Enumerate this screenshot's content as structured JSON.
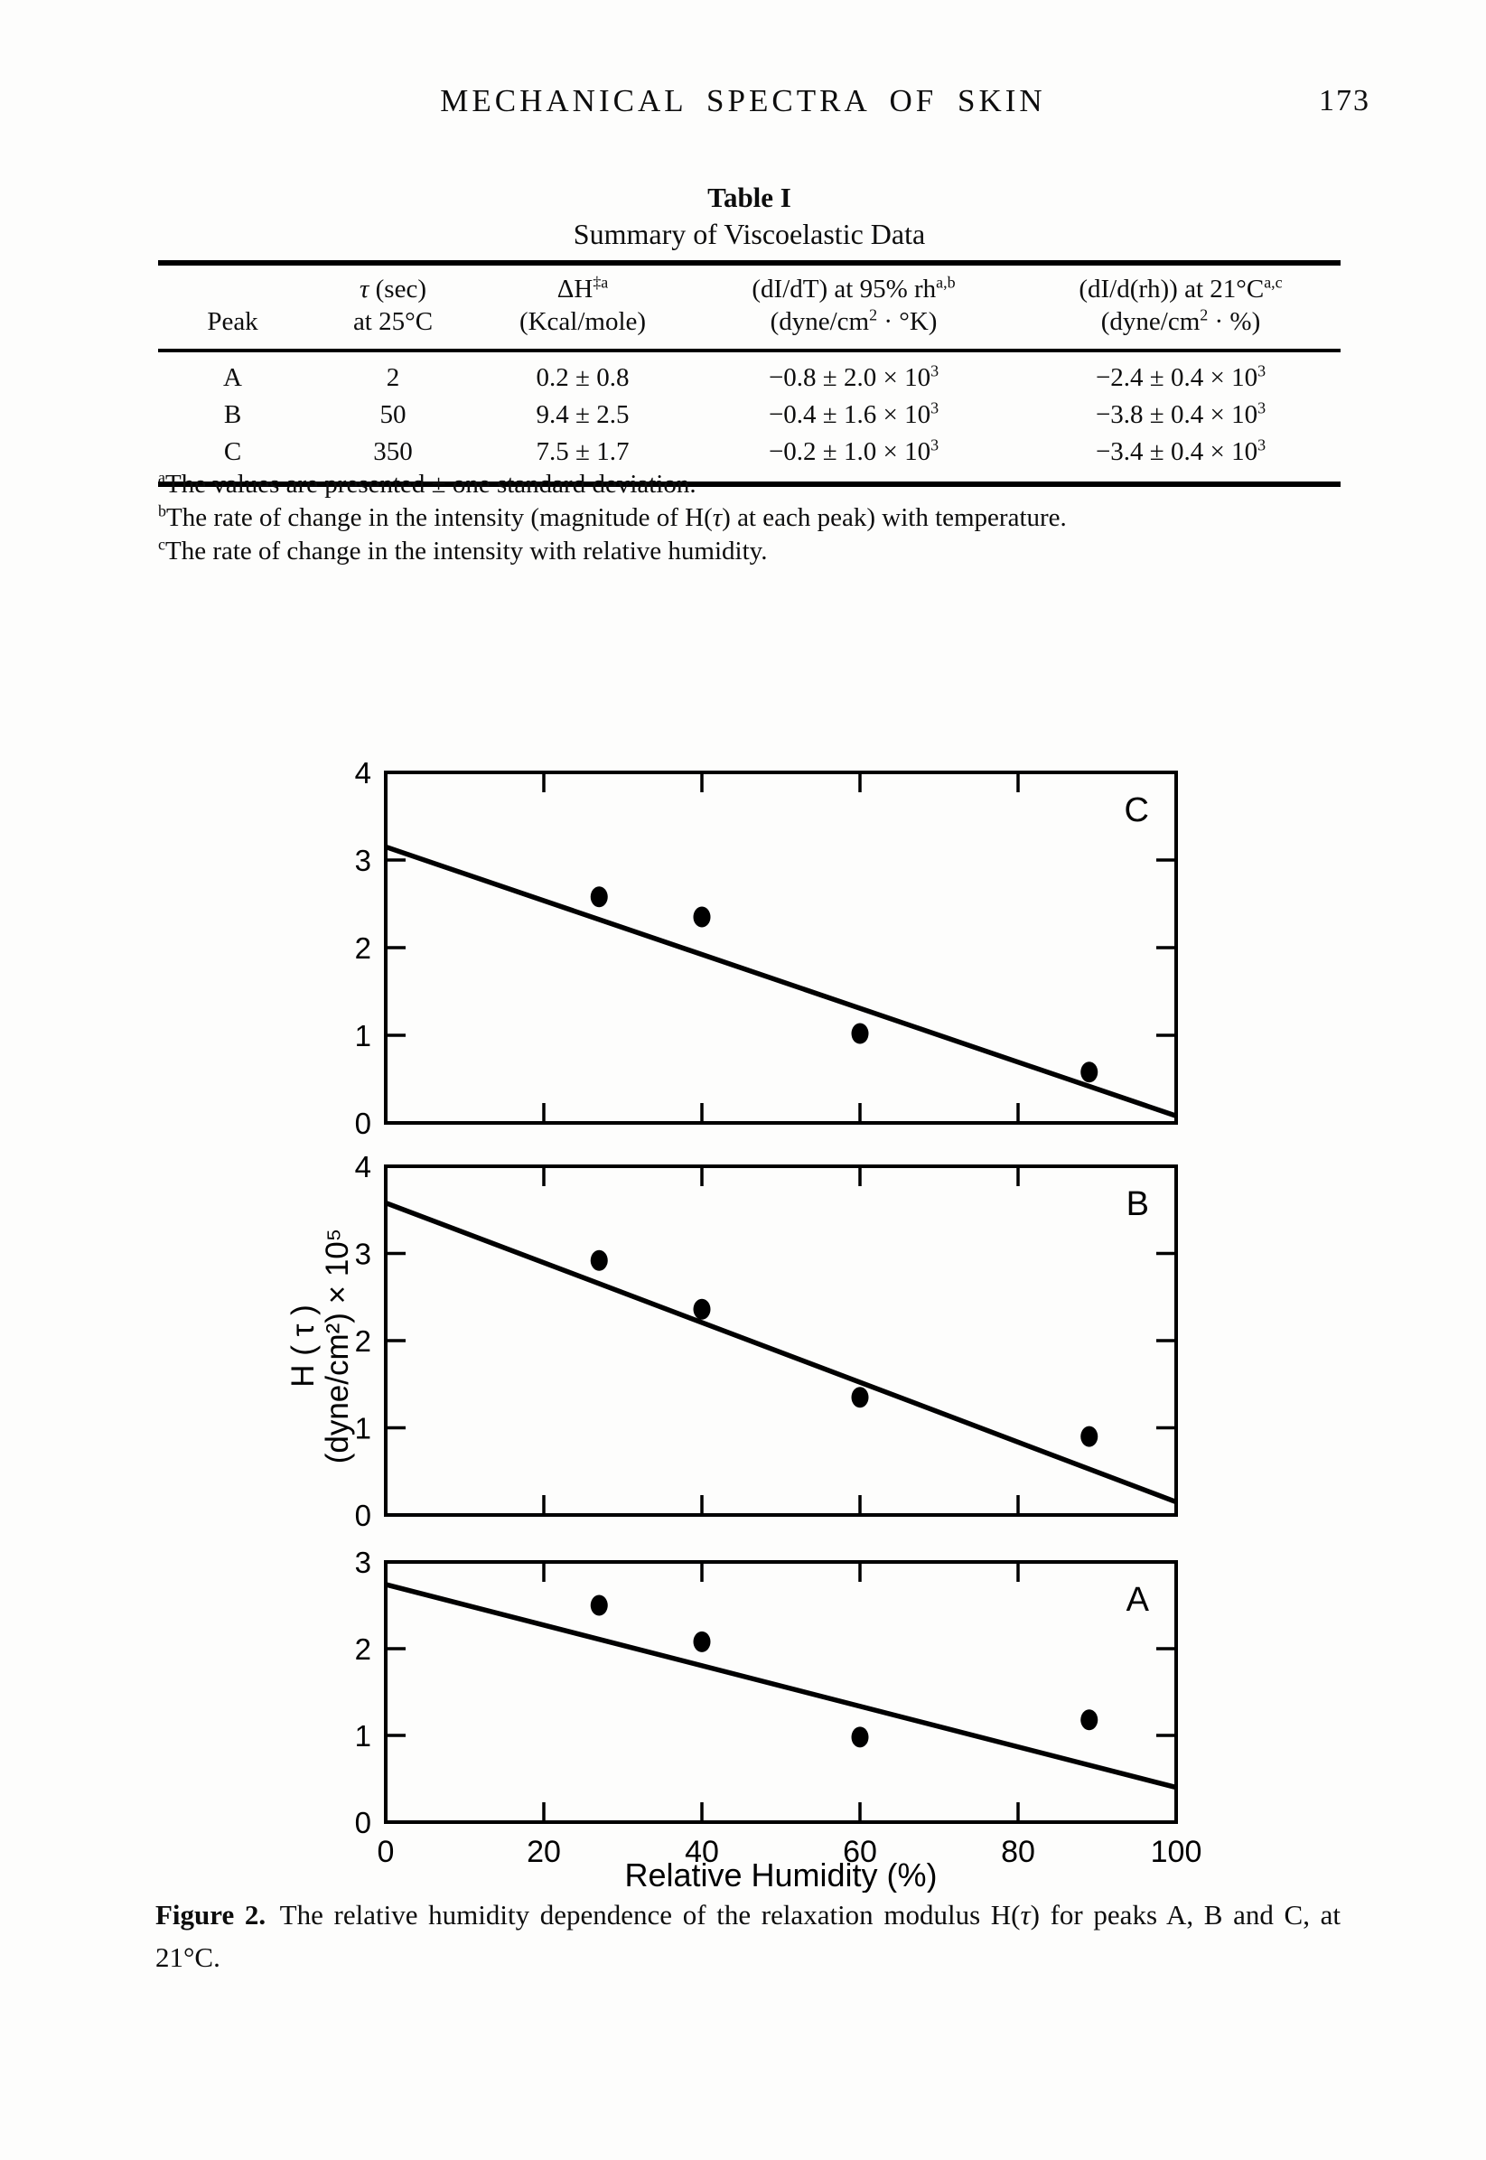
{
  "page": {
    "header_title": "MECHANICAL SPECTRA OF SKIN",
    "page_number": "173"
  },
  "table": {
    "title": "Table I",
    "subtitle": "Summary of Viscoelastic Data",
    "columns": [
      {
        "line1_html": "",
        "line2_html": "Peak"
      },
      {
        "line1_html": "<i>τ</i> (sec)",
        "line2_html": "at 25°C"
      },
      {
        "line1_html": "ΔH<sup>‡a</sup>",
        "line2_html": "(Kcal/mole)"
      },
      {
        "line1_html": "(dI/dT) at 95% rh<sup>a,b</sup>",
        "line2_html": "(dyne/cm<sup>2</sup> · °K)"
      },
      {
        "line1_html": "(dI/d(rh)) at 21°C<sup>a,c</sup>",
        "line2_html": "(dyne/cm<sup>2</sup> · %)"
      }
    ],
    "rows": [
      {
        "peak": "A",
        "tau": "2",
        "dh": "0.2 ± 0.8",
        "didt_html": "−0.8 ± 2.0 × 10<sup>3</sup>",
        "didrh_html": "−2.4 ± 0.4 × 10<sup>3</sup>"
      },
      {
        "peak": "B",
        "tau": "50",
        "dh": "9.4 ± 2.5",
        "didt_html": "−0.4 ± 1.6 × 10<sup>3</sup>",
        "didrh_html": "−3.8 ± 0.4 × 10<sup>3</sup>"
      },
      {
        "peak": "C",
        "tau": "350",
        "dh": "7.5 ± 1.7",
        "didt_html": "−0.2 ± 1.0 × 10<sup>3</sup>",
        "didrh_html": "−3.4 ± 0.4 × 10<sup>3</sup>"
      }
    ],
    "footnotes_html": [
      "<sup>a</sup>The values are presented ± one standard deviation.",
      "<sup>b</sup>The rate of change in the intensity (magnitude of H(<i>τ</i>) at each peak) with temperature.",
      "<sup>c</sup>The rate of change in the intensity with relative humidity."
    ]
  },
  "chart_data": [
    {
      "type": "scatter",
      "panel_label": "C",
      "x": [
        27,
        40,
        60,
        89
      ],
      "y": [
        2.58,
        2.35,
        1.02,
        0.58
      ],
      "fit_line": {
        "x": [
          0,
          100
        ],
        "y": [
          3.15,
          0.08
        ]
      },
      "xlim": [
        0,
        100
      ],
      "ylim": [
        0,
        4
      ],
      "xticks": [
        0,
        20,
        40,
        60,
        80,
        100
      ],
      "yticks": [
        0,
        1,
        2,
        3,
        4
      ],
      "xlabel": "Relative Humidity (%)",
      "ylabel": "H ( τ ) (dyne/cm²) × 10⁵",
      "grid": "off",
      "legend": "none"
    },
    {
      "type": "scatter",
      "panel_label": "B",
      "x": [
        27,
        40,
        60,
        89
      ],
      "y": [
        2.92,
        2.36,
        1.35,
        0.9
      ],
      "fit_line": {
        "x": [
          0,
          100
        ],
        "y": [
          3.58,
          0.15
        ]
      },
      "xlim": [
        0,
        100
      ],
      "ylim": [
        0,
        4
      ],
      "xticks": [
        0,
        20,
        40,
        60,
        80,
        100
      ],
      "yticks": [
        0,
        1,
        2,
        3,
        4
      ],
      "xlabel": "Relative Humidity (%)",
      "ylabel": "H ( τ ) (dyne/cm²) × 10⁵",
      "grid": "off",
      "legend": "none"
    },
    {
      "type": "scatter",
      "panel_label": "A",
      "x": [
        27,
        40,
        60,
        89
      ],
      "y": [
        2.5,
        2.08,
        0.98,
        1.18
      ],
      "fit_line": {
        "x": [
          0,
          100
        ],
        "y": [
          2.74,
          0.4
        ]
      },
      "xlim": [
        0,
        100
      ],
      "ylim": [
        0,
        3
      ],
      "xticks": [
        0,
        20,
        40,
        60,
        80,
        100
      ],
      "yticks": [
        0,
        1,
        2,
        3
      ],
      "xlabel": "Relative Humidity (%)",
      "ylabel": "H ( τ ) (dyne/cm²) × 10⁵",
      "grid": "off",
      "legend": "none"
    }
  ],
  "figure": {
    "xlabel": "Relative Humidity (%)",
    "ylabel_line1": "H ( τ )",
    "ylabel_line2": "(dyne/cm²) × 10⁵",
    "xtick_labels": [
      "0",
      "20",
      "40",
      "60",
      "80",
      "100"
    ],
    "caption_html": "<b>Figure 2.</b>&ensp;The relative humidity dependence of the relaxation modulus H(<i>τ</i>) for peaks A, B and C, at 21°C."
  }
}
